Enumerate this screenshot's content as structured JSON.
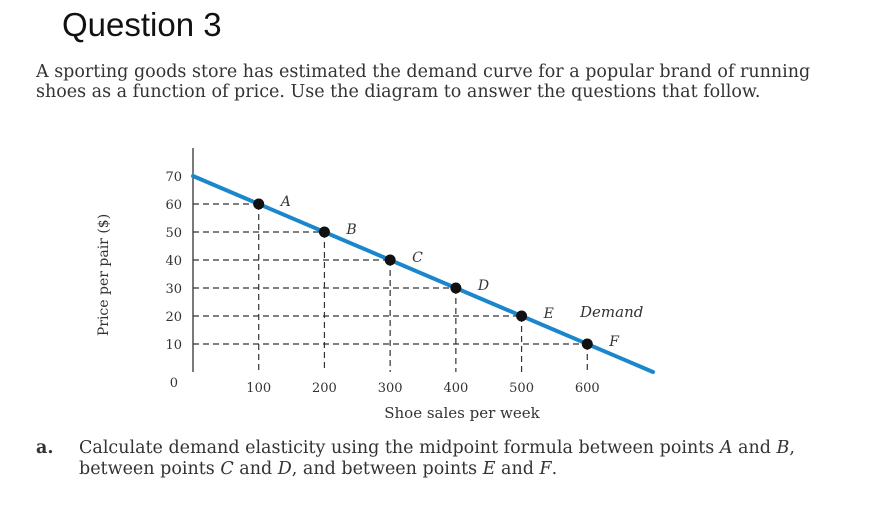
{
  "title": "Question 3",
  "intro": "A sporting goods store has estimated the demand curve for a popular brand of running shoes as a function of price. Use the diagram to answer the questions that follow.",
  "question": {
    "letter": "a.",
    "parts": [
      {
        "text": "Calculate demand elasticity using the midpoint formula between points "
      },
      {
        "text": "A",
        "italic": true
      },
      {
        "text": " and "
      },
      {
        "text": "B",
        "italic": true
      },
      {
        "text": ", between points "
      },
      {
        "text": "C",
        "italic": true
      },
      {
        "text": " and "
      },
      {
        "text": "D",
        "italic": true
      },
      {
        "text": ", and between points "
      },
      {
        "text": "E",
        "italic": true
      },
      {
        "text": " and "
      },
      {
        "text": "F",
        "italic": true
      },
      {
        "text": "."
      }
    ]
  },
  "chart_data": {
    "type": "line",
    "xlabel": "Shoe sales per week",
    "ylabel": "Price per pair ($)",
    "xlim": [
      0,
      700
    ],
    "ylim": [
      0,
      70
    ],
    "x_ticks": [
      100,
      200,
      300,
      400,
      500,
      600
    ],
    "y_ticks": [
      10,
      20,
      30,
      40,
      50,
      60,
      70
    ],
    "origin_label": "0",
    "grid": false,
    "dashed_guides": true,
    "series": [
      {
        "name": "Demand",
        "color": "#1a86cc",
        "x": [
          0,
          700
        ],
        "y": [
          70,
          0
        ]
      }
    ],
    "points": [
      {
        "label": "A",
        "x": 100,
        "y": 60
      },
      {
        "label": "B",
        "x": 200,
        "y": 50
      },
      {
        "label": "C",
        "x": 300,
        "y": 40
      },
      {
        "label": "D",
        "x": 400,
        "y": 30
      },
      {
        "label": "E",
        "x": 500,
        "y": 20
      },
      {
        "label": "F",
        "x": 600,
        "y": 10
      }
    ]
  }
}
